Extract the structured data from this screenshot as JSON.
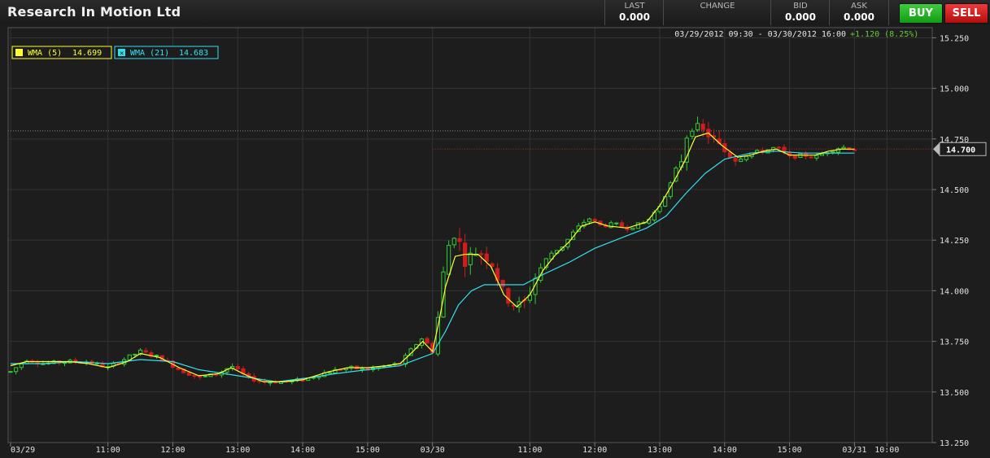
{
  "header": {
    "title": "Research In Motion Ltd",
    "last_label": "LAST",
    "last_value": "0.000",
    "change_label": "CHANGE",
    "change_value": "",
    "bid_label": "BID",
    "bid_value": "0.000",
    "ask_label": "ASK",
    "ask_value": "0.000",
    "buy_label": "BUY",
    "sell_label": "SELL"
  },
  "colors": {
    "up": "#33cc33",
    "down": "#d01c1c",
    "wma5": "#ffff33",
    "wma21": "#33e0f0",
    "grid": "#333333",
    "background": "#1d1d1d",
    "change_positive": "#66cc33"
  },
  "chart_data": {
    "type": "candlestick",
    "title": "",
    "date_range": "03/29/2012 09:30 - 03/30/2012 16:00",
    "change_text": "+1.120 (8.25%)",
    "ylim": [
      13.25,
      15.3
    ],
    "y_ticks": [
      13.25,
      13.5,
      13.75,
      14.0,
      14.25,
      14.5,
      14.75,
      15.0,
      15.25
    ],
    "y_tick_labels": [
      "13.250",
      "13.500",
      "13.750",
      "14.000",
      "14.250",
      "14.500",
      "14.750",
      "15.000",
      "15.250"
    ],
    "x_ticks": [
      {
        "t": 0,
        "label": "03/29"
      },
      {
        "t": 1.5,
        "label": "11:00"
      },
      {
        "t": 2.5,
        "label": "12:00"
      },
      {
        "t": 3.5,
        "label": "13:00"
      },
      {
        "t": 4.5,
        "label": "14:00"
      },
      {
        "t": 5.5,
        "label": "15:00"
      },
      {
        "t": 6.5,
        "label": "03/30"
      },
      {
        "t": 8,
        "label": "11:00"
      },
      {
        "t": 9,
        "label": "12:00"
      },
      {
        "t": 10,
        "label": "13:00"
      },
      {
        "t": 11,
        "label": "14:00"
      },
      {
        "t": 12,
        "label": "15:00"
      },
      {
        "t": 13,
        "label": "03/31"
      },
      {
        "t": 13.5,
        "label": "10:00"
      }
    ],
    "x_range": [
      0,
      14.2
    ],
    "x_unit": "trading hours from 03/29 09:30",
    "current_price": 14.7,
    "current_price_label": "14.700",
    "reference_level": 14.79,
    "legend": [
      {
        "name": "WMA (5)",
        "value": "14.699",
        "color": "#ffff33"
      },
      {
        "name": "WMA (21)",
        "value": "14.683",
        "color": "#33e0f0"
      }
    ],
    "price_path": [
      [
        0.0,
        13.6
      ],
      [
        0.25,
        13.66
      ],
      [
        0.5,
        13.64
      ],
      [
        0.9,
        13.65
      ],
      [
        1.2,
        13.65
      ],
      [
        1.5,
        13.62
      ],
      [
        1.8,
        13.67
      ],
      [
        2.0,
        13.7
      ],
      [
        2.3,
        13.67
      ],
      [
        2.6,
        13.61
      ],
      [
        2.9,
        13.57
      ],
      [
        3.2,
        13.59
      ],
      [
        3.4,
        13.63
      ],
      [
        3.65,
        13.57
      ],
      [
        3.9,
        13.55
      ],
      [
        4.2,
        13.55
      ],
      [
        4.5,
        13.56
      ],
      [
        4.9,
        13.6
      ],
      [
        5.2,
        13.62
      ],
      [
        5.5,
        13.61
      ],
      [
        5.8,
        13.63
      ],
      [
        6.0,
        13.64
      ],
      [
        6.2,
        13.72
      ],
      [
        6.35,
        13.77
      ],
      [
        6.5,
        13.7
      ],
      [
        6.55,
        13.7
      ],
      [
        6.6,
        13.95
      ],
      [
        6.7,
        14.15
      ],
      [
        6.8,
        14.3
      ],
      [
        6.9,
        14.25
      ],
      [
        7.0,
        14.15
      ],
      [
        7.2,
        14.2
      ],
      [
        7.4,
        14.15
      ],
      [
        7.6,
        13.98
      ],
      [
        7.8,
        13.92
      ],
      [
        7.95,
        13.95
      ],
      [
        8.1,
        14.08
      ],
      [
        8.3,
        14.18
      ],
      [
        8.5,
        14.22
      ],
      [
        8.7,
        14.3
      ],
      [
        8.9,
        14.36
      ],
      [
        9.1,
        14.32
      ],
      [
        9.3,
        14.33
      ],
      [
        9.5,
        14.31
      ],
      [
        9.8,
        14.34
      ],
      [
        10.0,
        14.42
      ],
      [
        10.2,
        14.55
      ],
      [
        10.35,
        14.66
      ],
      [
        10.45,
        14.82
      ],
      [
        10.6,
        14.8
      ],
      [
        10.8,
        14.76
      ],
      [
        10.95,
        14.7
      ],
      [
        11.2,
        14.65
      ],
      [
        11.4,
        14.68
      ],
      [
        11.6,
        14.69
      ],
      [
        11.8,
        14.71
      ],
      [
        12.0,
        14.66
      ],
      [
        12.2,
        14.67
      ],
      [
        12.4,
        14.66
      ],
      [
        12.6,
        14.69
      ],
      [
        12.8,
        14.71
      ],
      [
        13.0,
        14.7
      ]
    ],
    "wma5_path": [
      [
        0.0,
        13.63
      ],
      [
        0.25,
        13.65
      ],
      [
        0.5,
        13.65
      ],
      [
        0.9,
        13.65
      ],
      [
        1.2,
        13.64
      ],
      [
        1.5,
        13.62
      ],
      [
        1.8,
        13.65
      ],
      [
        2.0,
        13.69
      ],
      [
        2.3,
        13.67
      ],
      [
        2.6,
        13.62
      ],
      [
        2.9,
        13.58
      ],
      [
        3.2,
        13.59
      ],
      [
        3.4,
        13.62
      ],
      [
        3.65,
        13.58
      ],
      [
        3.9,
        13.55
      ],
      [
        4.2,
        13.55
      ],
      [
        4.5,
        13.56
      ],
      [
        4.9,
        13.6
      ],
      [
        5.2,
        13.62
      ],
      [
        5.5,
        13.62
      ],
      [
        5.8,
        13.63
      ],
      [
        6.0,
        13.64
      ],
      [
        6.2,
        13.7
      ],
      [
        6.35,
        13.75
      ],
      [
        6.5,
        13.7
      ],
      [
        6.6,
        13.85
      ],
      [
        6.7,
        14.02
      ],
      [
        6.85,
        14.17
      ],
      [
        7.0,
        14.18
      ],
      [
        7.2,
        14.18
      ],
      [
        7.4,
        14.12
      ],
      [
        7.6,
        13.98
      ],
      [
        7.8,
        13.92
      ],
      [
        8.0,
        13.98
      ],
      [
        8.2,
        14.1
      ],
      [
        8.4,
        14.18
      ],
      [
        8.6,
        14.24
      ],
      [
        8.8,
        14.32
      ],
      [
        9.0,
        14.34
      ],
      [
        9.2,
        14.32
      ],
      [
        9.5,
        14.31
      ],
      [
        9.8,
        14.34
      ],
      [
        10.0,
        14.42
      ],
      [
        10.2,
        14.53
      ],
      [
        10.4,
        14.65
      ],
      [
        10.55,
        14.76
      ],
      [
        10.75,
        14.78
      ],
      [
        10.95,
        14.72
      ],
      [
        11.2,
        14.66
      ],
      [
        11.4,
        14.67
      ],
      [
        11.6,
        14.69
      ],
      [
        11.8,
        14.7
      ],
      [
        12.0,
        14.67
      ],
      [
        12.2,
        14.67
      ],
      [
        12.4,
        14.67
      ],
      [
        12.6,
        14.69
      ],
      [
        12.8,
        14.7
      ],
      [
        13.0,
        14.7
      ]
    ],
    "wma21_path": [
      [
        0.0,
        13.64
      ],
      [
        0.5,
        13.64
      ],
      [
        1.0,
        13.65
      ],
      [
        1.5,
        13.64
      ],
      [
        2.0,
        13.66
      ],
      [
        2.5,
        13.65
      ],
      [
        2.9,
        13.61
      ],
      [
        3.3,
        13.59
      ],
      [
        3.7,
        13.57
      ],
      [
        4.1,
        13.55
      ],
      [
        4.6,
        13.57
      ],
      [
        5.0,
        13.59
      ],
      [
        5.5,
        13.61
      ],
      [
        6.0,
        13.63
      ],
      [
        6.5,
        13.69
      ],
      [
        6.7,
        13.8
      ],
      [
        6.9,
        13.93
      ],
      [
        7.1,
        14.0
      ],
      [
        7.3,
        14.03
      ],
      [
        7.6,
        14.03
      ],
      [
        7.9,
        14.03
      ],
      [
        8.2,
        14.08
      ],
      [
        8.6,
        14.14
      ],
      [
        9.0,
        14.21
      ],
      [
        9.4,
        14.26
      ],
      [
        9.8,
        14.31
      ],
      [
        10.1,
        14.37
      ],
      [
        10.4,
        14.48
      ],
      [
        10.7,
        14.58
      ],
      [
        11.0,
        14.65
      ],
      [
        11.4,
        14.68
      ],
      [
        11.8,
        14.69
      ],
      [
        12.2,
        14.68
      ],
      [
        12.6,
        14.68
      ],
      [
        13.0,
        14.68
      ]
    ]
  }
}
